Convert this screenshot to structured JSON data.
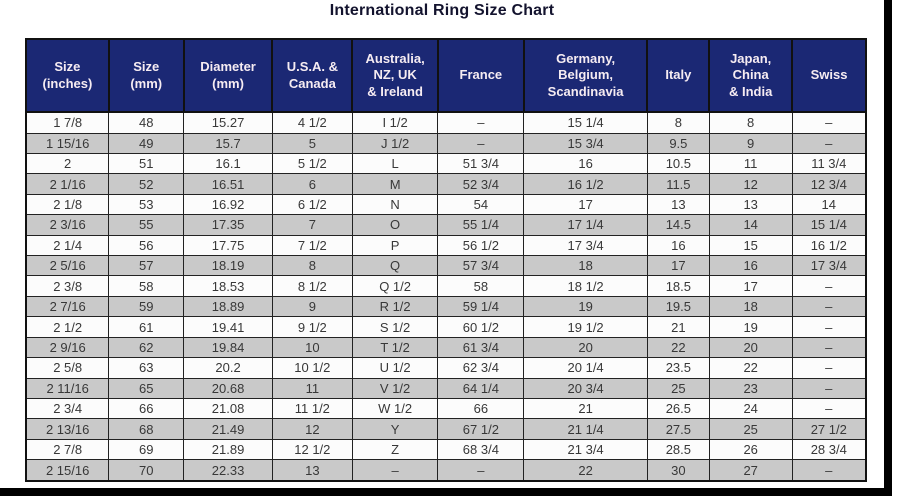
{
  "title": "International Ring Size Chart",
  "colors": {
    "header_bg": "#1b2874",
    "header_text": "#f6ecf2",
    "row_stripe_gray": "#c9c9c9",
    "row_stripe_white": "#fcfcfc",
    "grid_border": "#222222",
    "title_text": "#13132e",
    "frame": "#000000"
  },
  "chart_data": {
    "type": "table",
    "title": "International Ring Size Chart",
    "columns": [
      [
        "Size",
        "(inches)"
      ],
      [
        "Size",
        "(mm)"
      ],
      [
        "Diameter",
        "(mm)"
      ],
      [
        "U.S.A. &",
        "Canada"
      ],
      [
        "Australia,",
        "NZ, UK",
        "& Ireland"
      ],
      [
        "France"
      ],
      [
        "Germany,",
        "Belgium,",
        "Scandinavia"
      ],
      [
        "Italy"
      ],
      [
        "Japan,",
        "China",
        "& India"
      ],
      [
        "Swiss"
      ]
    ],
    "col_widths_pct": [
      9.86,
      8.91,
      10.57,
      9.5,
      10.21,
      10.21,
      14.73,
      7.36,
      9.86,
      8.79
    ],
    "rows": [
      [
        "1 7/8",
        "48",
        "15.27",
        "4 1/2",
        "I 1/2",
        "–",
        "15 1/4",
        "8",
        "8",
        "–"
      ],
      [
        "1 15/16",
        "49",
        "15.7",
        "5",
        "J 1/2",
        "–",
        "15 3/4",
        "9.5",
        "9",
        "–"
      ],
      [
        "2",
        "51",
        "16.1",
        "5 1/2",
        "L",
        "51 3/4",
        "16",
        "10.5",
        "11",
        "11 3/4"
      ],
      [
        "2 1/16",
        "52",
        "16.51",
        "6",
        "M",
        "52 3/4",
        "16 1/2",
        "11.5",
        "12",
        "12 3/4"
      ],
      [
        "2 1/8",
        "53",
        "16.92",
        "6 1/2",
        "N",
        "54",
        "17",
        "13",
        "13",
        "14"
      ],
      [
        "2 3/16",
        "55",
        "17.35",
        "7",
        "O",
        "55 1/4",
        "17 1/4",
        "14.5",
        "14",
        "15 1/4"
      ],
      [
        "2 1/4",
        "56",
        "17.75",
        "7 1/2",
        "P",
        "56 1/2",
        "17 3/4",
        "16",
        "15",
        "16 1/2"
      ],
      [
        "2 5/16",
        "57",
        "18.19",
        "8",
        "Q",
        "57 3/4",
        "18",
        "17",
        "16",
        "17 3/4"
      ],
      [
        "2 3/8",
        "58",
        "18.53",
        "8 1/2",
        "Q 1/2",
        "58",
        "18 1/2",
        "18.5",
        "17",
        "–"
      ],
      [
        "2 7/16",
        "59",
        "18.89",
        "9",
        "R 1/2",
        "59 1/4",
        "19",
        "19.5",
        "18",
        "–"
      ],
      [
        "2 1/2",
        "61",
        "19.41",
        "9 1/2",
        "S 1/2",
        "60 1/2",
        "19 1/2",
        "21",
        "19",
        "–"
      ],
      [
        "2 9/16",
        "62",
        "19.84",
        "10",
        "T 1/2",
        "61 3/4",
        "20",
        "22",
        "20",
        "–"
      ],
      [
        "2 5/8",
        "63",
        "20.2",
        "10 1/2",
        "U 1/2",
        "62 3/4",
        "20 1/4",
        "23.5",
        "22",
        "–"
      ],
      [
        "2 11/16",
        "65",
        "20.68",
        "11",
        "V 1/2",
        "64 1/4",
        "20 3/4",
        "25",
        "23",
        "–"
      ],
      [
        "2 3/4",
        "66",
        "21.08",
        "11 1/2",
        "W 1/2",
        "66",
        "21",
        "26.5",
        "24",
        "–"
      ],
      [
        "2 13/16",
        "68",
        "21.49",
        "12",
        "Y",
        "67 1/2",
        "21 1/4",
        "27.5",
        "25",
        "27 1/2"
      ],
      [
        "2 7/8",
        "69",
        "21.89",
        "12 1/2",
        "Z",
        "68 3/4",
        "21 3/4",
        "28.5",
        "26",
        "28 3/4"
      ],
      [
        "2 15/16",
        "70",
        "22.33",
        "13",
        "–",
        "–",
        "22",
        "30",
        "27",
        "–"
      ]
    ]
  }
}
